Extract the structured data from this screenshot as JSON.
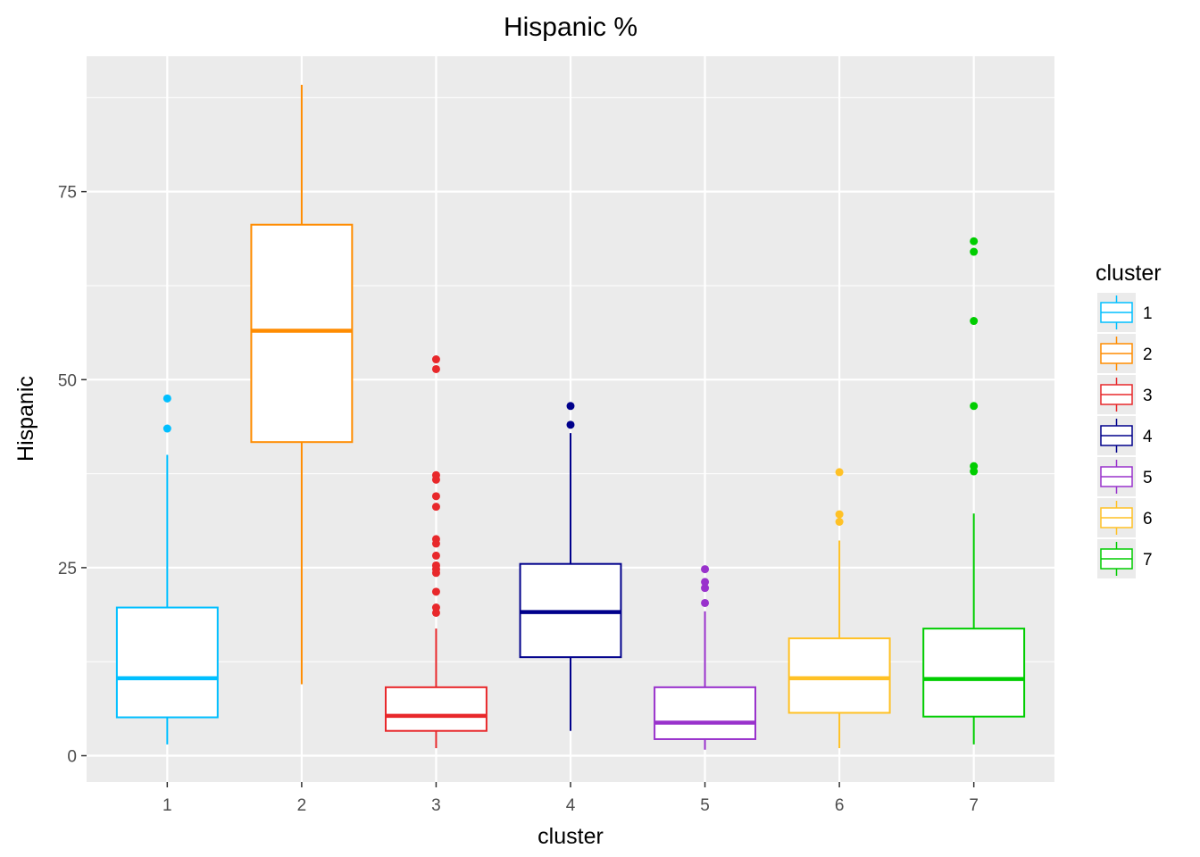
{
  "chart_data": {
    "type": "boxplot",
    "title": "Hispanic %",
    "xlabel": "cluster",
    "ylabel": "Hispanic",
    "categories": [
      "1",
      "2",
      "3",
      "4",
      "5",
      "6",
      "7"
    ],
    "ylim": [
      -3.5,
      93
    ],
    "yticks": [
      0,
      25,
      50,
      75
    ],
    "y_tick_labels": [
      "0",
      "25",
      "50",
      "75"
    ],
    "grid": true,
    "legend": {
      "title": "cluster",
      "position": "right"
    },
    "colors": [
      "#00bfff",
      "#ff8c00",
      "#e8282b",
      "#00008b",
      "#9932cc",
      "#ffc125",
      "#00cd00"
    ],
    "boxes": [
      {
        "category": "1",
        "whisker_low": 1.5,
        "q1": 5.1,
        "median": 10.3,
        "q3": 19.7,
        "whisker_high": 40.0,
        "outliers": [
          43.5,
          47.5
        ]
      },
      {
        "category": "2",
        "whisker_low": 9.5,
        "q1": 41.7,
        "median": 56.5,
        "q3": 70.6,
        "whisker_high": 89.2,
        "outliers": []
      },
      {
        "category": "3",
        "whisker_low": 1.0,
        "q1": 3.3,
        "median": 5.3,
        "q3": 9.1,
        "whisker_high": 16.9,
        "outliers": [
          19.0,
          19.7,
          21.8,
          24.3,
          24.8,
          25.3,
          26.6,
          28.2,
          28.8,
          33.1,
          34.5,
          36.7,
          37.3,
          51.4,
          52.7
        ]
      },
      {
        "category": "4",
        "whisker_low": 3.3,
        "q1": 13.1,
        "median": 19.1,
        "q3": 25.5,
        "whisker_high": 42.9,
        "outliers": [
          44.0,
          46.5
        ]
      },
      {
        "category": "5",
        "whisker_low": 0.8,
        "q1": 2.2,
        "median": 4.4,
        "q3": 9.1,
        "whisker_high": 19.2,
        "outliers": [
          20.3,
          22.3,
          23.1,
          24.8
        ]
      },
      {
        "category": "6",
        "whisker_low": 1.0,
        "q1": 5.7,
        "median": 10.3,
        "q3": 15.6,
        "whisker_high": 28.6,
        "outliers": [
          31.1,
          32.1,
          37.7
        ]
      },
      {
        "category": "7",
        "whisker_low": 1.5,
        "q1": 5.2,
        "median": 10.2,
        "q3": 16.9,
        "whisker_high": 32.2,
        "outliers": [
          37.8,
          38.5,
          46.5,
          57.8,
          67.0,
          68.4
        ]
      }
    ]
  }
}
